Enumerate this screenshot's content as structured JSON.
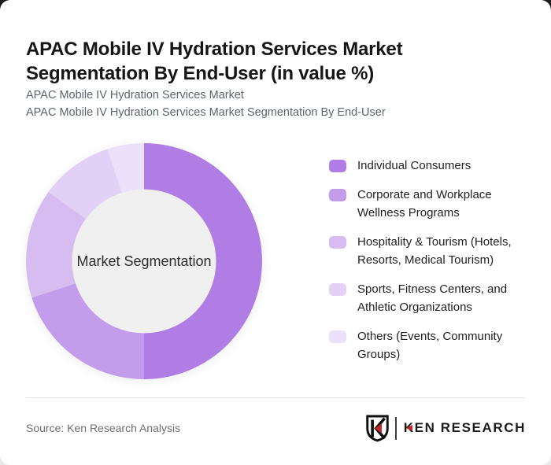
{
  "page": {
    "card_background": "#ffffff",
    "outside_top_color": "#191919",
    "outside_bottom_color": "#e9e9e9"
  },
  "header": {
    "title": "APAC Mobile IV Hydration Services Market Segmentation By End-User (in value %)",
    "subtitle_line1": "APAC Mobile IV Hydration Services Market",
    "subtitle_line2": "APAC Mobile IV Hydration Services Market Segmentation By End-User"
  },
  "chart_data": {
    "type": "pie",
    "subtype": "donut",
    "title": "APAC Mobile IV Hydration Services Market Segmentation By End-User (in value %)",
    "unit": "value %",
    "center_label": "Market Segmentation",
    "categories": [
      "Individual Consumers",
      "Corporate and Workplace Wellness Programs",
      "Hospitality & Tourism (Hotels, Resorts, Medical Tourism)",
      "Sports, Fitness Centers, and Athletic Organizations",
      "Others (Events, Community Groups)"
    ],
    "values": [
      50,
      20,
      15,
      10,
      5
    ],
    "colors": [
      "#b07de5",
      "#c39cec",
      "#d7bcf2",
      "#e2d0f6",
      "#ece1fa"
    ],
    "start_angle_deg": 0,
    "direction": "clockwise",
    "inner_radius_ratio": 0.61,
    "hole_fill": "#f0f0f0",
    "center_text_color": "#2d2d2d",
    "legend_position": "right"
  },
  "legend": {
    "items": [
      {
        "label": "Individual Consumers",
        "color": "#b07de5"
      },
      {
        "label": "Corporate and Workplace Wellness Programs",
        "color": "#c39cec"
      },
      {
        "label": "Hospitality & Tourism (Hotels, Resorts, Medical Tourism)",
        "color": "#d7bcf2"
      },
      {
        "label": "Sports, Fitness Centers, and Athletic Organizations",
        "color": "#e2d0f6"
      },
      {
        "label": "Others (Events, Community Groups)",
        "color": "#ece1fa"
      }
    ]
  },
  "footer": {
    "source": "Source: Ken Research Analysis",
    "logo": {
      "brand_first_letter": "K",
      "brand_rest": "EN RESEARCH",
      "accent_red": "#c1272d",
      "text_color": "#1c1c1c"
    }
  }
}
